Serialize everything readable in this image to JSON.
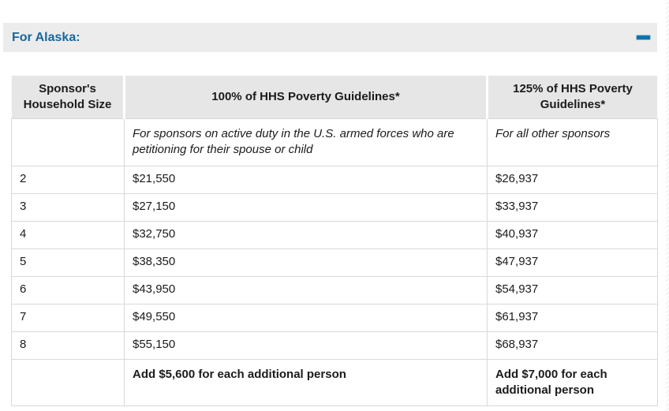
{
  "colors": {
    "accent_blue": "#17689d",
    "icon_blue": "#1173ad",
    "band_bg": "#ececec",
    "header_bg": "#e6e6e6",
    "border": "#d9d9d9",
    "text": "#1b1b1b"
  },
  "accordion": {
    "title": "For Alaska:",
    "state": "expanded",
    "toggle_icon": "minus-icon"
  },
  "table": {
    "headers": {
      "household_size": "Sponsor's Household Size",
      "guidelines_100": "100% of HHS Poverty Guidelines*",
      "guidelines_125": "125% of HHS Poverty Guidelines*"
    },
    "subheaders": {
      "guidelines_100": "For sponsors on active duty in the U.S. armed forces who are petitioning for their spouse or child",
      "guidelines_125": "For all other sponsors"
    },
    "rows": [
      {
        "household_size": "2",
        "guideline_100": "$21,550",
        "guideline_125": "$26,937"
      },
      {
        "household_size": "3",
        "guideline_100": "$27,150",
        "guideline_125": "$33,937"
      },
      {
        "household_size": "4",
        "guideline_100": "$32,750",
        "guideline_125": "$40,937"
      },
      {
        "household_size": "5",
        "guideline_100": "$38,350",
        "guideline_125": "$47,937"
      },
      {
        "household_size": "6",
        "guideline_100": "$43,950",
        "guideline_125": "$54,937"
      },
      {
        "household_size": "7",
        "guideline_100": "$49,550",
        "guideline_125": "$61,937"
      },
      {
        "household_size": "8",
        "guideline_100": "$55,150",
        "guideline_125": "$68,937"
      }
    ],
    "footer": {
      "guideline_100": "Add $5,600 for each additional person",
      "guideline_125": "Add $7,000 for each additional person"
    }
  }
}
